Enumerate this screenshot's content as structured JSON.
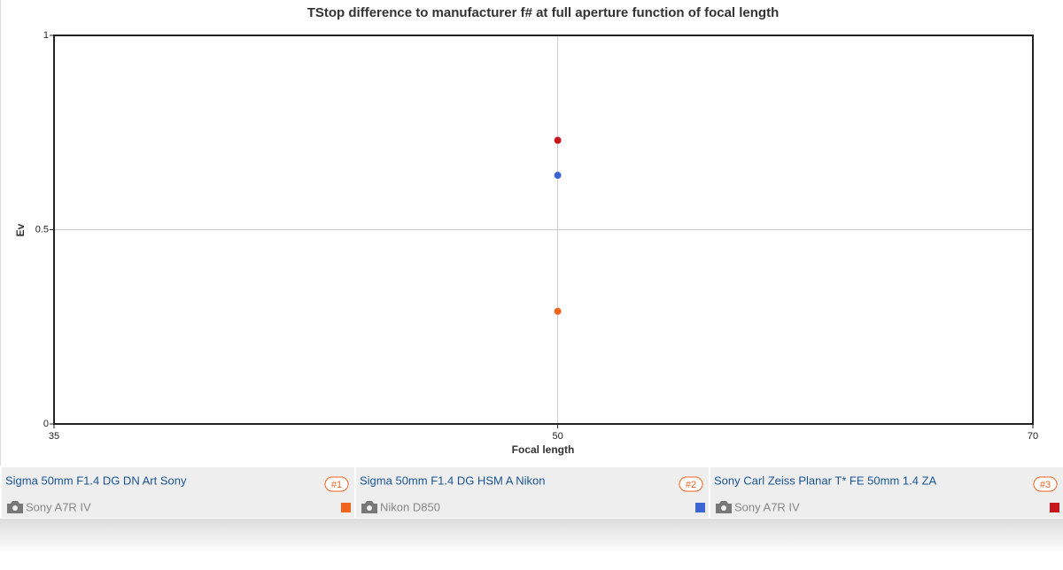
{
  "chart_data": {
    "type": "scatter",
    "title": "TStop difference to manufacturer f# at full aperture function of focal length",
    "xlabel": "Focal length",
    "ylabel": "Ev",
    "xscale": "log",
    "xlim": [
      35,
      70
    ],
    "xticks": [
      35,
      50,
      70
    ],
    "ylim": [
      0,
      1
    ],
    "yticks": [
      0,
      0.5,
      1
    ],
    "grid": true,
    "series": [
      {
        "name": "Sigma 50mm F1.4 DG DN Art Sony",
        "camera": "Sony A7R IV",
        "badge": "#1",
        "color": "#f0641e",
        "x": [
          50
        ],
        "values": [
          0.29
        ]
      },
      {
        "name": "Sigma 50mm F1.4 DG HSM A Nikon",
        "camera": "Nikon D850",
        "badge": "#2",
        "color": "#3d65d4",
        "x": [
          50
        ],
        "values": [
          0.64
        ]
      },
      {
        "name": "Sony Carl Zeiss Planar T* FE 50mm 1.4 ZA",
        "camera": "Sony A7R IV",
        "badge": "#3",
        "color": "#c8161d",
        "x": [
          50
        ],
        "values": [
          0.73
        ]
      }
    ]
  }
}
